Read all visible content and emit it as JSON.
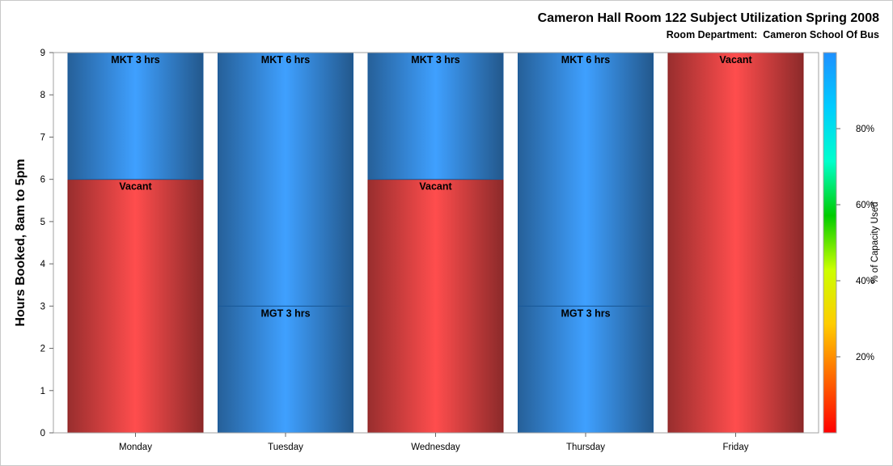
{
  "chart_data": {
    "type": "bar",
    "stacked": true,
    "title": "Cameron Hall Room 122 Subject Utilization Spring 2008",
    "subtitle": "Room Department:  Cameron School Of Bus",
    "ylabel": "Hours Booked, 8am to 5pm",
    "xlabel": "",
    "ylim": [
      0,
      9
    ],
    "yticks": [
      "0",
      "1",
      "2",
      "3",
      "4",
      "5",
      "6",
      "7",
      "8",
      "9"
    ],
    "categories": [
      "Monday",
      "Tuesday",
      "Wednesday",
      "Thursday",
      "Friday"
    ],
    "stacks": [
      {
        "category": "Monday",
        "segments": [
          {
            "label": "Vacant",
            "value": 6,
            "capacity_pct": 0
          },
          {
            "label": "MKT 3 hrs",
            "value": 3,
            "capacity_pct": 100
          }
        ]
      },
      {
        "category": "Tuesday",
        "segments": [
          {
            "label": "MGT 3 hrs",
            "value": 3,
            "capacity_pct": 100
          },
          {
            "label": "MKT 6 hrs",
            "value": 6,
            "capacity_pct": 100
          }
        ]
      },
      {
        "category": "Wednesday",
        "segments": [
          {
            "label": "Vacant",
            "value": 6,
            "capacity_pct": 0
          },
          {
            "label": "MKT 3 hrs",
            "value": 3,
            "capacity_pct": 100
          }
        ]
      },
      {
        "category": "Thursday",
        "segments": [
          {
            "label": "MGT 3 hrs",
            "value": 3,
            "capacity_pct": 100
          },
          {
            "label": "MKT 6 hrs",
            "value": 6,
            "capacity_pct": 100
          }
        ]
      },
      {
        "category": "Friday",
        "segments": [
          {
            "label": "Vacant",
            "value": 9,
            "capacity_pct": 0
          }
        ]
      }
    ],
    "colorbar": {
      "label": "% of Capacity Used",
      "ticks": [
        "20%",
        "40%",
        "60%",
        "80%"
      ],
      "tick_values": [
        20,
        40,
        60,
        80
      ],
      "range": [
        0,
        100
      ],
      "colors": [
        "#ff0000",
        "#ff6600",
        "#ffcc00",
        "#ccff00",
        "#00cc00",
        "#00ffcc",
        "#00ccff",
        "#1e90ff"
      ]
    },
    "bar_colors": {
      "vacant": "#ff4d4d",
      "booked": "#3fa0ff"
    },
    "grid": false,
    "legend": "right colorbar"
  }
}
